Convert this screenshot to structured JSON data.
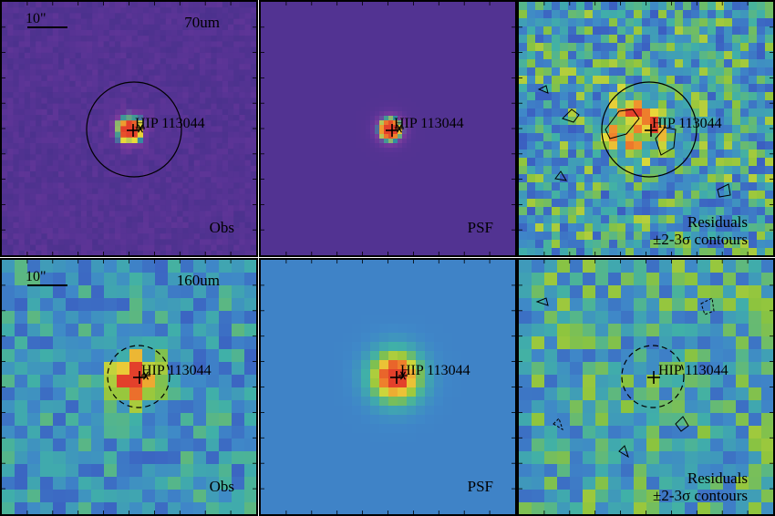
{
  "figure": {
    "rows": [
      {
        "band": "70um",
        "scale": "10\"",
        "panels": [
          {
            "kind": "obs",
            "label": "Obs",
            "target": "HIP 113044",
            "colormap": "purple"
          },
          {
            "kind": "psf",
            "label": "PSF",
            "target": "HIP 113044",
            "colormap": "purple"
          },
          {
            "kind": "res",
            "label_line1": "Residuals",
            "label_line2": "±2-3σ contours",
            "target": "HIP 113044",
            "colormap": "viridis"
          }
        ]
      },
      {
        "band": "160um",
        "scale": "10\"",
        "panels": [
          {
            "kind": "obs",
            "label": "Obs",
            "target": "HIP 113044",
            "colormap": "viridis"
          },
          {
            "kind": "psf",
            "label": "PSF",
            "target": "HIP 113044",
            "colormap": "viridis"
          },
          {
            "kind": "res",
            "label_line1": "Residuals",
            "label_line2": "±2-3σ contours",
            "target": "HIP 113044",
            "colormap": "viridis"
          }
        ]
      }
    ],
    "colors": {
      "purple_low": "#4a2a86",
      "purple_mid": "#6a3aa0",
      "purple_bg": "#4b2f8f",
      "hot_red": "#e3402b",
      "hot_orange": "#f08a2c",
      "hot_yellow": "#e8dc3a",
      "vir_blue": "#3f6fc8",
      "vir_teal": "#44a8b0",
      "vir_green": "#8cc43e",
      "border": "#000000"
    }
  }
}
